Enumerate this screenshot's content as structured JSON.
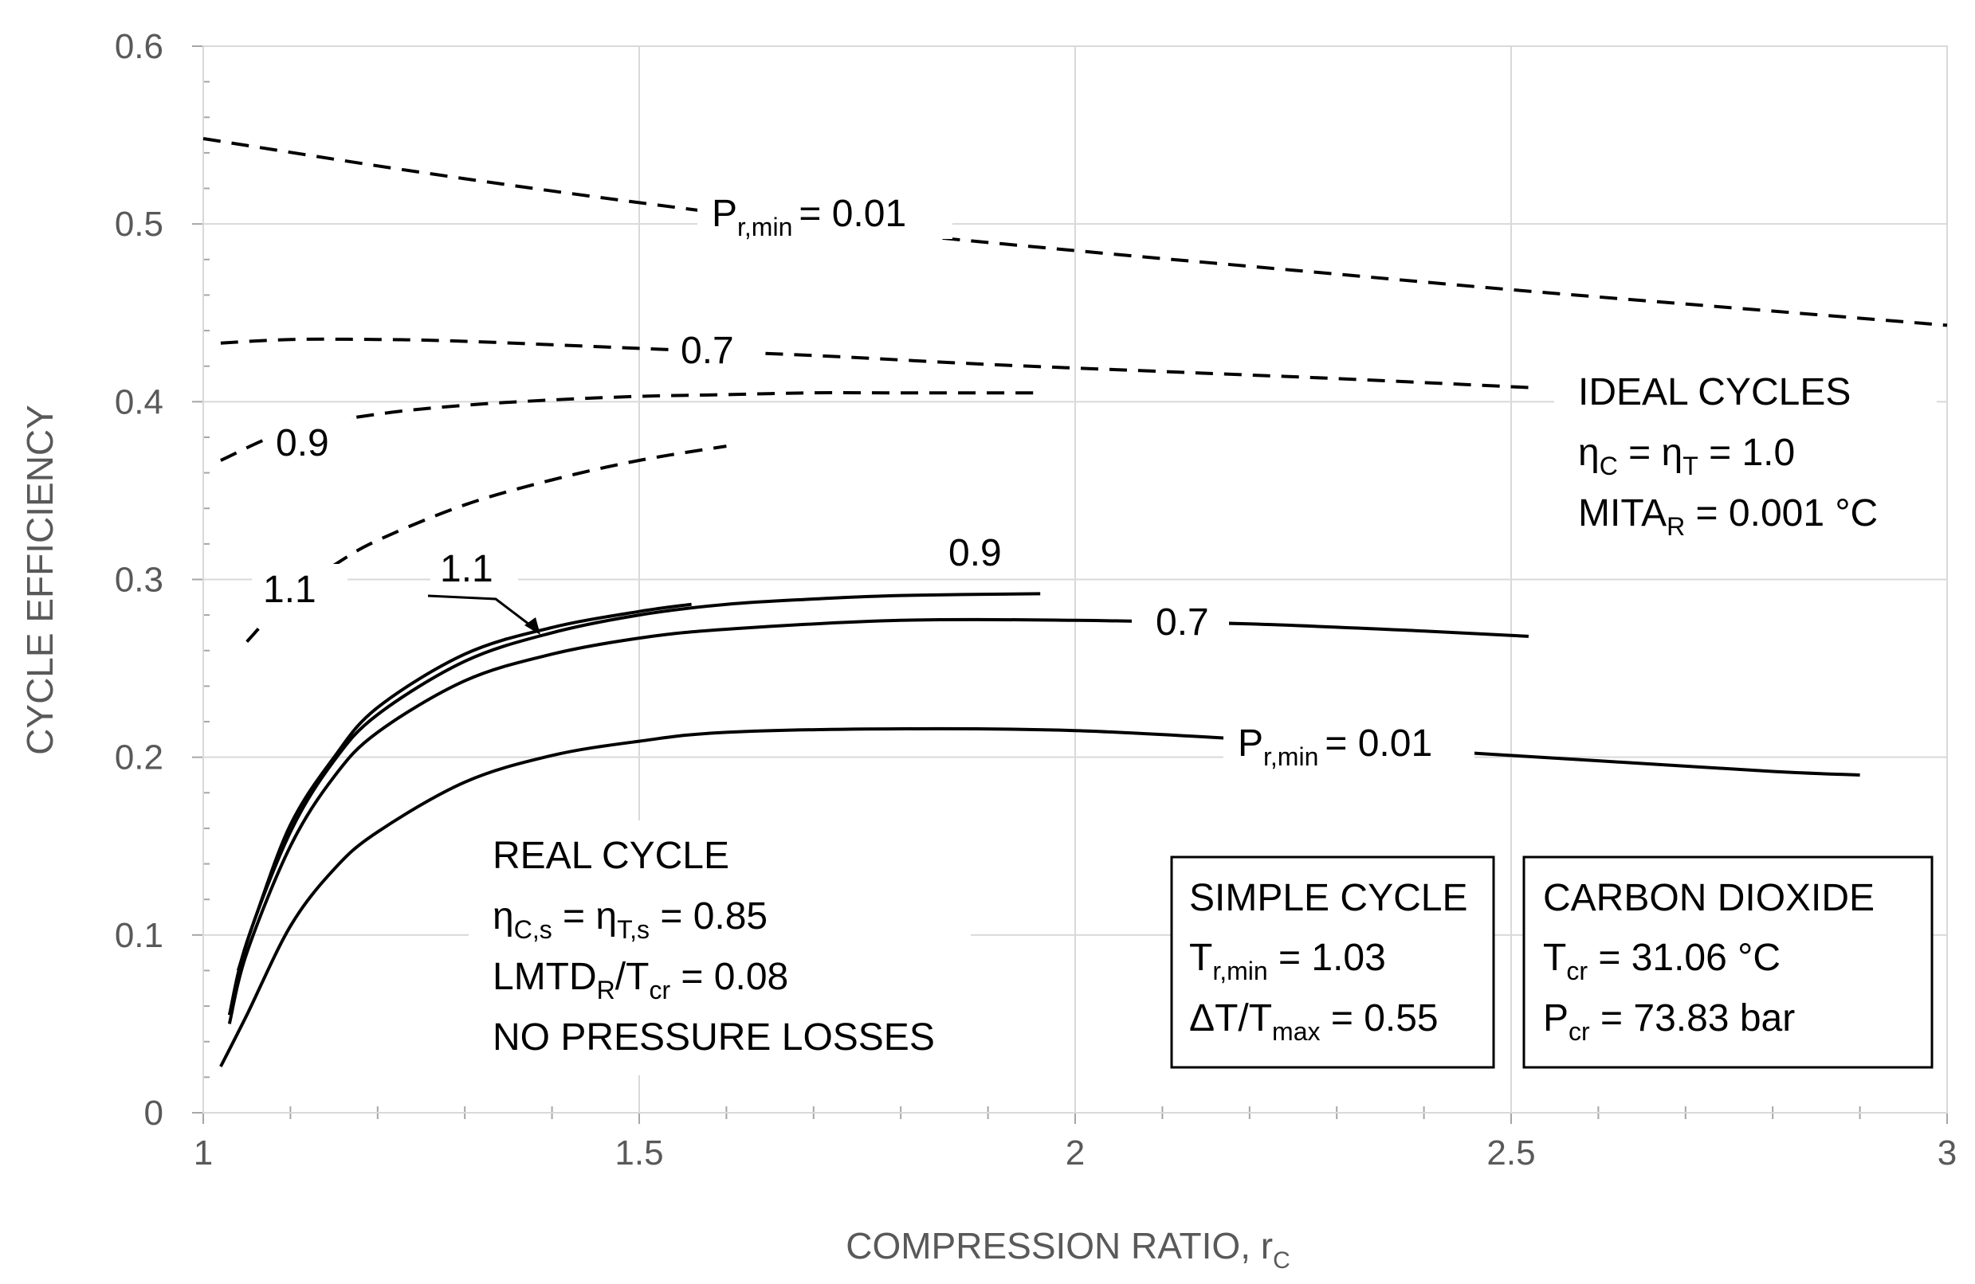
{
  "chart_data": {
    "type": "line",
    "xlabel": "COMPRESSION RATIO, r",
    "xlabel_sub": "C",
    "ylabel": "CYCLE EFFICIENCY",
    "xlim": [
      1,
      3
    ],
    "ylim": [
      0,
      0.6
    ],
    "x_major_ticks": [
      1,
      1.5,
      2,
      2.5,
      3
    ],
    "x_tick_labels": [
      "1",
      "1.5",
      "2",
      "2.5",
      "3"
    ],
    "y_major_ticks": [
      0,
      0.1,
      0.2,
      0.3,
      0.4,
      0.5,
      0.6
    ],
    "y_tick_labels": [
      "0",
      "0.1",
      "0.2",
      "0.3",
      "0.4",
      "0.5",
      "0.6"
    ],
    "grid": "major",
    "series": [
      {
        "name": "ideal P_r,min = 0.01",
        "group": "ideal",
        "style": "dashed",
        "label": "0.01",
        "x": [
          1.0,
          1.25,
          1.5,
          1.75,
          2.0,
          2.25,
          2.5,
          2.75,
          3.0
        ],
        "y": [
          0.548,
          0.529,
          0.512,
          0.497,
          0.485,
          0.474,
          0.463,
          0.453,
          0.443
        ]
      },
      {
        "name": "ideal P_r,min = 0.7",
        "group": "ideal",
        "style": "dashed",
        "label": "0.7",
        "x": [
          1.02,
          1.1,
          1.2,
          1.3,
          1.5,
          1.7,
          1.9,
          2.1,
          2.3,
          2.52
        ],
        "y": [
          0.433,
          0.435,
          0.435,
          0.434,
          0.43,
          0.426,
          0.421,
          0.417,
          0.413,
          0.408
        ]
      },
      {
        "name": "ideal P_r,min = 0.9",
        "group": "ideal",
        "style": "dashed",
        "label": "0.9",
        "x": [
          1.02,
          1.1,
          1.2,
          1.3,
          1.4,
          1.5,
          1.6,
          1.7,
          1.8,
          1.96
        ],
        "y": [
          0.367,
          0.384,
          0.393,
          0.398,
          0.401,
          0.403,
          0.404,
          0.405,
          0.405,
          0.405
        ]
      },
      {
        "name": "ideal P_r,min = 1.1",
        "group": "ideal",
        "style": "dashed",
        "label": "1.1",
        "x": [
          1.05,
          1.1,
          1.15,
          1.2,
          1.3,
          1.4,
          1.5,
          1.6
        ],
        "y": [
          0.265,
          0.291,
          0.308,
          0.322,
          0.342,
          0.356,
          0.367,
          0.375
        ]
      },
      {
        "name": "real P_r,min = 0.01",
        "group": "real",
        "style": "solid",
        "label": "0.01",
        "x": [
          1.02,
          1.05,
          1.1,
          1.15,
          1.2,
          1.3,
          1.4,
          1.5,
          1.6,
          1.8,
          2.0,
          2.2,
          2.4,
          2.6,
          2.8,
          2.9
        ],
        "y": [
          0.026,
          0.055,
          0.105,
          0.137,
          0.158,
          0.186,
          0.201,
          0.209,
          0.214,
          0.216,
          0.215,
          0.21,
          0.204,
          0.198,
          0.192,
          0.19
        ]
      },
      {
        "name": "real P_r,min = 0.7",
        "group": "real",
        "style": "solid",
        "label": "0.7",
        "x": [
          1.03,
          1.05,
          1.1,
          1.15,
          1.2,
          1.3,
          1.4,
          1.5,
          1.6,
          1.8,
          2.0,
          2.2,
          2.4,
          2.52
        ],
        "y": [
          0.05,
          0.09,
          0.15,
          0.189,
          0.214,
          0.243,
          0.258,
          0.267,
          0.272,
          0.277,
          0.277,
          0.275,
          0.271,
          0.268
        ]
      },
      {
        "name": "real P_r,min = 0.9",
        "group": "real",
        "style": "solid",
        "label": "0.9",
        "x": [
          1.03,
          1.05,
          1.1,
          1.15,
          1.2,
          1.3,
          1.4,
          1.5,
          1.6,
          1.7,
          1.8,
          1.96
        ],
        "y": [
          0.055,
          0.096,
          0.158,
          0.198,
          0.224,
          0.254,
          0.27,
          0.28,
          0.286,
          0.289,
          0.291,
          0.292
        ]
      },
      {
        "name": "real P_r,min = 1.1",
        "group": "real",
        "style": "solid",
        "label": "1.1",
        "x": [
          1.04,
          1.06,
          1.1,
          1.15,
          1.2,
          1.3,
          1.4,
          1.5,
          1.56
        ],
        "y": [
          0.08,
          0.11,
          0.162,
          0.2,
          0.228,
          0.258,
          0.273,
          0.282,
          0.286
        ]
      }
    ],
    "annotations": {
      "ideal_label_p": "P",
      "ideal_label_p_sub": "r,min",
      "ideal_label_p_value": "= 0.01",
      "ideal_label_07": "0.7",
      "ideal_label_09": "0.9",
      "ideal_label_11": "1.1",
      "real_label_11": "1.1",
      "real_label_09": "0.9",
      "real_label_07": "0.7",
      "real_label_p": "P",
      "real_label_p_sub": "r,min",
      "real_label_p_value": "= 0.01"
    },
    "ideal_block": {
      "line1": "IDEAL CYCLES",
      "line2_a": "η",
      "line2_a_sub": "C",
      "line2_b": " = η",
      "line2_b_sub": "T",
      "line2_c": " = 1.0",
      "line3_a": "MITA",
      "line3_a_sub": "R",
      "line3_b": " = 0.001 °C"
    },
    "real_block": {
      "line1": "REAL CYCLE",
      "line2_a": "η",
      "line2_a_sub": "C,s",
      "line2_b": " = η",
      "line2_b_sub": "T,s",
      "line2_c": " = 0.85",
      "line3_a": "LMTD",
      "line3_a_sub": "R",
      "line3_b": "/T",
      "line3_b_sub": "cr",
      "line3_c": " = 0.08",
      "line4": "NO PRESSURE LOSSES"
    },
    "simple_box": {
      "line1": "SIMPLE CYCLE",
      "line2_a": "T",
      "line2_a_sub": "r,min",
      "line2_b": " = 1.03",
      "line3_a": "ΔT/T",
      "line3_a_sub": "max",
      "line3_b": " = 0.55"
    },
    "co2_box": {
      "line1": "CARBON DIOXIDE",
      "line2_a": "T",
      "line2_a_sub": "cr",
      "line2_b": " = 31.06 °C",
      "line3_a": "P",
      "line3_a_sub": "cr",
      "line3_b": " = 73.83 bar"
    }
  }
}
